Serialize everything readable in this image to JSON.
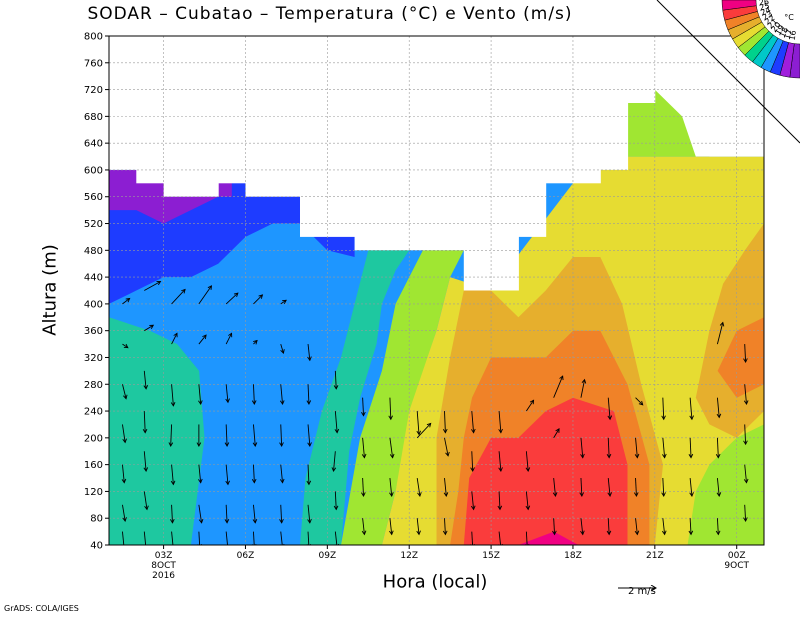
{
  "header": {
    "title": "SODAR – Cubatao – Temperatura (°C) e Vento (m/s)"
  },
  "footer": {
    "grads_label": "GrADS: COLA/IGES",
    "wind_ref_label": "2  m/s"
  },
  "chart_data": {
    "type": "heatmap",
    "title": "SODAR – Cubatao – Temperatura (°C) e Vento (m/s)",
    "xlabel": "Hora (local)",
    "ylabel": "Altura (m)",
    "xlim": [
      0,
      24
    ],
    "ylim": [
      40,
      800
    ],
    "yticks": [
      40,
      80,
      120,
      160,
      200,
      240,
      280,
      320,
      360,
      400,
      440,
      480,
      520,
      560,
      600,
      640,
      680,
      720,
      760,
      800
    ],
    "xticks": [
      {
        "x": 2,
        "label": [
          "03Z",
          "8OCT",
          "2016"
        ]
      },
      {
        "x": 5,
        "label": [
          "06Z"
        ]
      },
      {
        "x": 8,
        "label": [
          "09Z"
        ]
      },
      {
        "x": 11,
        "label": [
          "12Z"
        ]
      },
      {
        "x": 14,
        "label": [
          "15Z"
        ]
      },
      {
        "x": 17,
        "label": [
          "18Z"
        ]
      },
      {
        "x": 20,
        "label": [
          "21Z"
        ]
      },
      {
        "x": 23,
        "label": [
          "00Z",
          "9OCT"
        ]
      }
    ],
    "grid": true,
    "wind_reference_ms": 2,
    "colorbar": {
      "unit": "°C",
      "placement": "top-right",
      "levels": [
        16,
        17,
        18,
        19,
        20,
        21,
        22,
        23,
        24,
        25,
        26
      ],
      "colors": [
        "#8c1ed2",
        "#a01edc",
        "#1e3cff",
        "#1e96ff",
        "#00c8c8",
        "#00d28c",
        "#a0e632",
        "#e6dc32",
        "#e6af2d",
        "#f08228",
        "#fa3c3c",
        "#f00082"
      ]
    },
    "level_colors": [
      "#8c1ed2",
      "#1e3cff",
      "#1e96ff",
      "#1ec8a0",
      "#00c8c8",
      "#a0e632",
      "#e6dc32",
      "#e6af2d",
      "#f08228",
      "#fa3c3c",
      "#f00082"
    ],
    "hours": [
      0,
      1,
      2,
      3,
      4,
      5,
      6,
      7,
      8,
      9,
      10,
      11,
      12,
      13,
      14,
      15,
      16,
      17,
      18,
      19,
      20,
      21,
      22,
      23
    ],
    "top_height_m": [
      600,
      580,
      560,
      560,
      580,
      560,
      560,
      500,
      500,
      480,
      480,
      480,
      480,
      420,
      420,
      500,
      580,
      580,
      600,
      700,
      720,
      680,
      620,
      620
    ],
    "temperature_bands": [
      {
        "level": 2,
        "points": [
          [
            0,
            40
          ],
          [
            24,
            40
          ],
          [
            24,
            620
          ],
          [
            0,
            620
          ]
        ]
      },
      {
        "level": 1,
        "points": [
          [
            0,
            400
          ],
          [
            1,
            420
          ],
          [
            2,
            440
          ],
          [
            3,
            440
          ],
          [
            4,
            460
          ],
          [
            5,
            500
          ],
          [
            6,
            520
          ],
          [
            7,
            520
          ],
          [
            7.5,
            500
          ],
          [
            8,
            480
          ],
          [
            9,
            470
          ],
          [
            9,
            600
          ],
          [
            0,
            600
          ]
        ]
      },
      {
        "level": 0,
        "points": [
          [
            0,
            540
          ],
          [
            1,
            540
          ],
          [
            2,
            520
          ],
          [
            3,
            540
          ],
          [
            4,
            560
          ],
          [
            4.5,
            560
          ],
          [
            4.5,
            600
          ],
          [
            0,
            600
          ]
        ]
      },
      {
        "level": 3,
        "points": [
          [
            0,
            40
          ],
          [
            3,
            40
          ],
          [
            3.5,
            200
          ],
          [
            3.3,
            300
          ],
          [
            2.5,
            340
          ],
          [
            1.5,
            360
          ],
          [
            0,
            380
          ]
        ]
      },
      {
        "level": 3,
        "points": [
          [
            7,
            40
          ],
          [
            8.5,
            40
          ],
          [
            8.8,
            180
          ],
          [
            9.2,
            260
          ],
          [
            9.8,
            340
          ],
          [
            10,
            400
          ],
          [
            10.5,
            450
          ],
          [
            11,
            480
          ],
          [
            9.5,
            480
          ],
          [
            9,
            400
          ],
          [
            8.5,
            320
          ],
          [
            7.8,
            240
          ],
          [
            7.2,
            140
          ]
        ]
      },
      {
        "level": 5,
        "points": [
          [
            8.5,
            40
          ],
          [
            10,
            40
          ],
          [
            10.5,
            120
          ],
          [
            11.2,
            260
          ],
          [
            12,
            360
          ],
          [
            12.5,
            440
          ],
          [
            13,
            480
          ],
          [
            11.5,
            480
          ],
          [
            10.5,
            400
          ],
          [
            10,
            300
          ],
          [
            9.2,
            200
          ]
        ]
      },
      {
        "level": 6,
        "points": [
          [
            10,
            40
          ],
          [
            24,
            40
          ],
          [
            24,
            620
          ],
          [
            18,
            620
          ],
          [
            17,
            580
          ],
          [
            15.5,
            500
          ],
          [
            14,
            420
          ],
          [
            12.5,
            440
          ],
          [
            12,
            360
          ],
          [
            11,
            240
          ],
          [
            10.5,
            120
          ]
        ]
      },
      {
        "level": 7,
        "points": [
          [
            12,
            40
          ],
          [
            20,
            40
          ],
          [
            20.3,
            160
          ],
          [
            19.5,
            280
          ],
          [
            18.8,
            400
          ],
          [
            18,
            470
          ],
          [
            17,
            470
          ],
          [
            16,
            420
          ],
          [
            15,
            380
          ],
          [
            14,
            420
          ],
          [
            13,
            420
          ],
          [
            12.5,
            320
          ],
          [
            12,
            200
          ]
        ]
      },
      {
        "level": 7,
        "points": [
          [
            21.5,
            260
          ],
          [
            22,
            360
          ],
          [
            22.5,
            430
          ],
          [
            23.3,
            480
          ],
          [
            24,
            520
          ],
          [
            24,
            240
          ],
          [
            23,
            200
          ],
          [
            22,
            220
          ]
        ]
      },
      {
        "level": 8,
        "points": [
          [
            12.5,
            40
          ],
          [
            19.8,
            40
          ],
          [
            19.8,
            160
          ],
          [
            19,
            280
          ],
          [
            18,
            360
          ],
          [
            17,
            360
          ],
          [
            16,
            320
          ],
          [
            15,
            320
          ],
          [
            14,
            320
          ],
          [
            13.3,
            260
          ],
          [
            13,
            200
          ],
          [
            12.8,
            120
          ]
        ]
      },
      {
        "level": 8,
        "points": [
          [
            22.3,
            300
          ],
          [
            23,
            360
          ],
          [
            24,
            380
          ],
          [
            24,
            280
          ],
          [
            23,
            260
          ]
        ]
      },
      {
        "level": 9,
        "points": [
          [
            13,
            40
          ],
          [
            19,
            40
          ],
          [
            19,
            160
          ],
          [
            18.5,
            240
          ],
          [
            17,
            260
          ],
          [
            16,
            240
          ],
          [
            15,
            200
          ],
          [
            14,
            200
          ],
          [
            13.2,
            140
          ]
        ]
      },
      {
        "level": 10,
        "points": [
          [
            15,
            40
          ],
          [
            16.3,
            60
          ],
          [
            17.2,
            40
          ]
        ]
      },
      {
        "level": 5,
        "points": [
          [
            20,
            40
          ],
          [
            21.2,
            40
          ],
          [
            21.5,
            120
          ],
          [
            22,
            160
          ],
          [
            23,
            200
          ],
          [
            24,
            220
          ],
          [
            24,
            40
          ]
        ]
      },
      {
        "level": 5,
        "points": [
          [
            18.5,
            620
          ],
          [
            19,
            700
          ],
          [
            20,
            720
          ],
          [
            21,
            680
          ],
          [
            21.5,
            620
          ]
        ]
      }
    ],
    "wind_vectors": [
      [
        0.2,
        400,
        0.8,
        0.3
      ],
      [
        0.2,
        340,
        0.6,
        -0.2
      ],
      [
        0.2,
        280,
        0.4,
        -0.8
      ],
      [
        0.2,
        220,
        0.3,
        -1.0
      ],
      [
        0.2,
        160,
        0.2,
        -1.0
      ],
      [
        0.2,
        100,
        0.3,
        -0.9
      ],
      [
        0.2,
        60,
        0.2,
        -1.0
      ],
      [
        1.0,
        420,
        1.8,
        0.5
      ],
      [
        1.0,
        360,
        1.0,
        0.3
      ],
      [
        1.0,
        300,
        0.2,
        -1.0
      ],
      [
        1.0,
        240,
        0.1,
        -1.2
      ],
      [
        1.0,
        180,
        0.2,
        -1.1
      ],
      [
        1.0,
        120,
        0.3,
        -1.0
      ],
      [
        1.0,
        60,
        0.2,
        -1.0
      ],
      [
        2.0,
        400,
        1.5,
        0.8
      ],
      [
        2.0,
        340,
        0.6,
        0.6
      ],
      [
        2.0,
        280,
        0.2,
        -1.2
      ],
      [
        2.0,
        220,
        -0.1,
        -1.2
      ],
      [
        2.0,
        160,
        0.2,
        -1.1
      ],
      [
        2.0,
        100,
        0.1,
        -1.0
      ],
      [
        2.0,
        60,
        0.2,
        -1.0
      ],
      [
        3.0,
        400,
        1.4,
        1.0
      ],
      [
        3.0,
        340,
        0.8,
        0.5
      ],
      [
        3.0,
        280,
        0.2,
        -1.1
      ],
      [
        3.0,
        220,
        0.0,
        -1.2
      ],
      [
        3.0,
        160,
        0.2,
        -1.0
      ],
      [
        3.0,
        100,
        0.3,
        -1.0
      ],
      [
        3.0,
        60,
        0.1,
        -0.9
      ],
      [
        4.0,
        400,
        1.3,
        0.6
      ],
      [
        4.0,
        340,
        0.6,
        0.6
      ],
      [
        4.0,
        280,
        0.2,
        -1.0
      ],
      [
        4.0,
        220,
        0.1,
        -1.2
      ],
      [
        4.0,
        160,
        0.2,
        -1.1
      ],
      [
        4.0,
        100,
        0.1,
        -1.0
      ],
      [
        4.0,
        60,
        0.2,
        -1.0
      ],
      [
        5.0,
        400,
        1.0,
        0.5
      ],
      [
        5.0,
        340,
        0.4,
        0.2
      ],
      [
        5.0,
        280,
        0.1,
        -1.1
      ],
      [
        5.0,
        220,
        0.2,
        -1.2
      ],
      [
        5.0,
        160,
        0.1,
        -1.0
      ],
      [
        5.0,
        100,
        0.2,
        -1.0
      ],
      [
        5.0,
        60,
        0.1,
        -0.9
      ],
      [
        6.0,
        400,
        0.6,
        0.2
      ],
      [
        6.0,
        340,
        0.3,
        -0.5
      ],
      [
        6.0,
        280,
        0.2,
        -1.1
      ],
      [
        6.0,
        220,
        0.1,
        -1.2
      ],
      [
        6.0,
        160,
        0.2,
        -1.0
      ],
      [
        6.0,
        100,
        0.1,
        -1.0
      ],
      [
        6.0,
        60,
        0.2,
        -0.9
      ],
      [
        7.0,
        340,
        0.2,
        -0.9
      ],
      [
        7.0,
        280,
        0.1,
        -1.1
      ],
      [
        7.0,
        220,
        0.2,
        -1.2
      ],
      [
        7.0,
        160,
        0.1,
        -1.1
      ],
      [
        7.0,
        100,
        0.2,
        -1.0
      ],
      [
        7.0,
        60,
        0.1,
        -0.9
      ],
      [
        8.0,
        300,
        0.1,
        -1.0
      ],
      [
        8.0,
        240,
        0.2,
        -1.2
      ],
      [
        8.0,
        180,
        -0.2,
        -1.1
      ],
      [
        8.0,
        120,
        0.1,
        -1.0
      ],
      [
        8.0,
        60,
        0.2,
        -0.9
      ],
      [
        9.0,
        260,
        0.1,
        -1.0
      ],
      [
        9.0,
        200,
        0.2,
        -1.1
      ],
      [
        9.0,
        140,
        0.1,
        -1.0
      ],
      [
        9.0,
        80,
        0.2,
        -0.9
      ],
      [
        10.0,
        260,
        0.1,
        -1.2
      ],
      [
        10.0,
        200,
        0.3,
        -1.1
      ],
      [
        10.0,
        140,
        0.2,
        -1.0
      ],
      [
        10.0,
        80,
        0.2,
        -0.9
      ],
      [
        11.0,
        240,
        0.2,
        -1.3
      ],
      [
        11.0,
        200,
        1.5,
        0.8
      ],
      [
        11.0,
        140,
        0.3,
        -1.0
      ],
      [
        11.0,
        80,
        0.2,
        -0.9
      ],
      [
        12.0,
        240,
        0.1,
        -1.2
      ],
      [
        12.0,
        200,
        0.4,
        -1.0
      ],
      [
        12.0,
        140,
        0.2,
        -1.0
      ],
      [
        12.0,
        80,
        0.1,
        -0.9
      ],
      [
        13.0,
        240,
        0.2,
        -1.2
      ],
      [
        13.0,
        180,
        0.1,
        -1.1
      ],
      [
        13.0,
        120,
        0.2,
        -1.0
      ],
      [
        13.0,
        60,
        0.1,
        -0.9
      ],
      [
        14.0,
        240,
        0.2,
        -1.2
      ],
      [
        14.0,
        180,
        0.2,
        -1.1
      ],
      [
        14.0,
        120,
        0.1,
        -1.0
      ],
      [
        14.0,
        60,
        0.2,
        -0.9
      ],
      [
        15.0,
        240,
        0.8,
        0.6
      ],
      [
        15.0,
        180,
        0.2,
        -1.1
      ],
      [
        15.0,
        120,
        0.2,
        -1.0
      ],
      [
        15.0,
        60,
        0.1,
        -0.9
      ],
      [
        16.0,
        260,
        1.0,
        1.2
      ],
      [
        16.0,
        200,
        0.6,
        0.5
      ],
      [
        16.0,
        140,
        0.2,
        -1.0
      ],
      [
        16.0,
        80,
        0.1,
        -0.9
      ],
      [
        17.0,
        260,
        0.4,
        1.0
      ],
      [
        17.0,
        200,
        0.2,
        -1.1
      ],
      [
        17.0,
        140,
        0.1,
        -1.0
      ],
      [
        17.0,
        80,
        0.2,
        -0.9
      ],
      [
        18.0,
        260,
        0.2,
        -1.2
      ],
      [
        18.0,
        200,
        0.1,
        -1.1
      ],
      [
        18.0,
        140,
        0.2,
        -1.0
      ],
      [
        18.0,
        80,
        0.1,
        -0.9
      ],
      [
        19.0,
        260,
        0.8,
        -0.4
      ],
      [
        19.0,
        200,
        0.2,
        -1.1
      ],
      [
        19.0,
        140,
        0.1,
        -1.0
      ],
      [
        19.0,
        80,
        0.2,
        -0.9
      ],
      [
        20.0,
        260,
        0.1,
        -1.2
      ],
      [
        20.0,
        200,
        0.2,
        -1.1
      ],
      [
        20.0,
        140,
        0.1,
        -1.0
      ],
      [
        20.0,
        80,
        0.2,
        -0.9
      ],
      [
        21.0,
        260,
        0.2,
        -1.2
      ],
      [
        21.0,
        200,
        0.1,
        -1.1
      ],
      [
        21.0,
        140,
        0.2,
        -1.0
      ],
      [
        21.0,
        80,
        0.1,
        -0.9
      ],
      [
        22.0,
        340,
        0.6,
        1.2
      ],
      [
        22.0,
        260,
        0.2,
        -1.1
      ],
      [
        22.0,
        200,
        0.1,
        -1.1
      ],
      [
        22.0,
        140,
        0.2,
        -1.0
      ],
      [
        22.0,
        80,
        0.1,
        -0.9
      ],
      [
        23.0,
        340,
        0.1,
        -1.0
      ],
      [
        23.0,
        280,
        0.2,
        -1.1
      ],
      [
        23.0,
        220,
        0.1,
        -1.1
      ],
      [
        23.0,
        160,
        0.2,
        -1.0
      ],
      [
        23.0,
        100,
        0.1,
        -0.9
      ]
    ]
  }
}
